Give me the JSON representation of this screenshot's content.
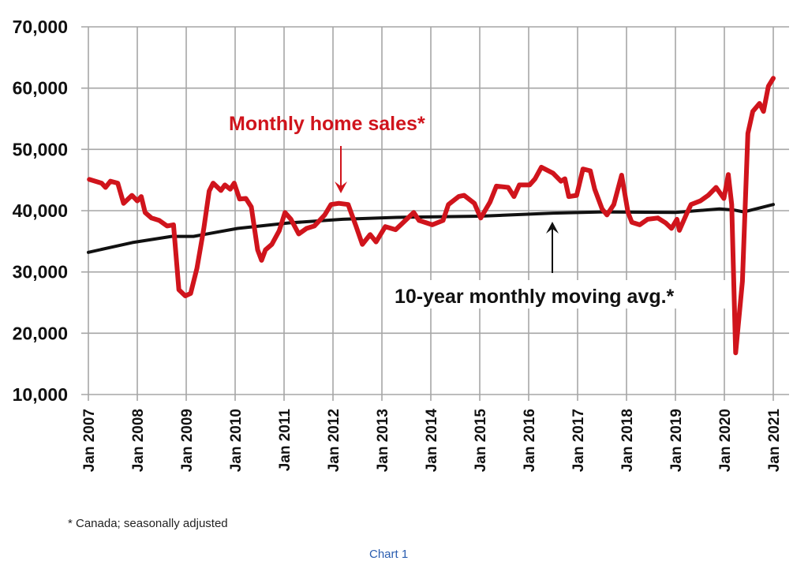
{
  "chart_data": {
    "type": "line",
    "title": "",
    "xlabel": "",
    "ylabel": "",
    "ylim": [
      10000,
      70000
    ],
    "xlim": [
      2007.0,
      2021.0
    ],
    "grid": true,
    "y_ticks": [
      "10,000",
      "20,000",
      "30,000",
      "40,000",
      "50,000",
      "60,000",
      "70,000"
    ],
    "y_tick_values": [
      10000,
      20000,
      30000,
      40000,
      50000,
      60000,
      70000
    ],
    "x_ticks": [
      "Jan 2007",
      "Jan 2008",
      "Jan 2009",
      "Jan 2010",
      "Jan 2011",
      "Jan 2012",
      "Jan 2013",
      "Jan 2014",
      "Jan 2015",
      "Jan 2016",
      "Jan 2017",
      "Jan 2018",
      "Jan 2019",
      "Jan 2020",
      "Jan 2021"
    ],
    "x_tick_values": [
      2007,
      2008,
      2009,
      2010,
      2011,
      2012,
      2013,
      2014,
      2015,
      2016,
      2017,
      2018,
      2019,
      2020,
      2021
    ],
    "series": [
      {
        "name": "Monthly home sales*",
        "color": "#d0141c",
        "points": [
          [
            2007.02,
            45100
          ],
          [
            2007.27,
            44500
          ],
          [
            2007.35,
            43800
          ],
          [
            2007.45,
            44800
          ],
          [
            2007.6,
            44500
          ],
          [
            2007.72,
            41200
          ],
          [
            2007.89,
            42500
          ],
          [
            2008.0,
            41600
          ],
          [
            2008.08,
            42300
          ],
          [
            2008.16,
            39700
          ],
          [
            2008.29,
            38800
          ],
          [
            2008.45,
            38400
          ],
          [
            2008.61,
            37500
          ],
          [
            2008.74,
            37700
          ],
          [
            2008.85,
            27100
          ],
          [
            2008.98,
            26100
          ],
          [
            2009.09,
            26500
          ],
          [
            2009.22,
            30600
          ],
          [
            2009.36,
            37100
          ],
          [
            2009.47,
            43200
          ],
          [
            2009.55,
            44500
          ],
          [
            2009.71,
            43300
          ],
          [
            2009.79,
            44200
          ],
          [
            2009.9,
            43500
          ],
          [
            2009.98,
            44500
          ],
          [
            2010.09,
            41900
          ],
          [
            2010.22,
            42000
          ],
          [
            2010.33,
            40600
          ],
          [
            2010.46,
            33600
          ],
          [
            2010.54,
            31900
          ],
          [
            2010.62,
            33600
          ],
          [
            2010.75,
            34500
          ],
          [
            2010.9,
            36700
          ],
          [
            2011.02,
            39700
          ],
          [
            2011.14,
            38600
          ],
          [
            2011.3,
            36200
          ],
          [
            2011.46,
            37100
          ],
          [
            2011.62,
            37500
          ],
          [
            2011.83,
            39300
          ],
          [
            2011.96,
            41000
          ],
          [
            2012.12,
            41200
          ],
          [
            2012.31,
            41000
          ],
          [
            2012.47,
            37500
          ],
          [
            2012.6,
            34500
          ],
          [
            2012.76,
            36100
          ],
          [
            2012.88,
            34900
          ],
          [
            2013.07,
            37400
          ],
          [
            2013.28,
            36900
          ],
          [
            2013.65,
            39700
          ],
          [
            2013.76,
            38400
          ],
          [
            2014.03,
            37700
          ],
          [
            2014.25,
            38400
          ],
          [
            2014.36,
            41000
          ],
          [
            2014.57,
            42300
          ],
          [
            2014.68,
            42500
          ],
          [
            2014.89,
            41200
          ],
          [
            2015.02,
            38800
          ],
          [
            2015.21,
            41400
          ],
          [
            2015.34,
            44000
          ],
          [
            2015.58,
            43800
          ],
          [
            2015.7,
            42300
          ],
          [
            2015.81,
            44200
          ],
          [
            2016.02,
            44200
          ],
          [
            2016.13,
            45200
          ],
          [
            2016.26,
            47100
          ],
          [
            2016.5,
            46100
          ],
          [
            2016.66,
            44800
          ],
          [
            2016.74,
            45200
          ],
          [
            2016.82,
            42300
          ],
          [
            2016.98,
            42500
          ],
          [
            2017.11,
            46800
          ],
          [
            2017.26,
            46500
          ],
          [
            2017.35,
            43500
          ],
          [
            2017.5,
            40300
          ],
          [
            2017.6,
            39300
          ],
          [
            2017.74,
            41000
          ],
          [
            2017.9,
            45800
          ],
          [
            2018.03,
            39700
          ],
          [
            2018.11,
            38100
          ],
          [
            2018.27,
            37700
          ],
          [
            2018.43,
            38600
          ],
          [
            2018.64,
            38800
          ],
          [
            2018.8,
            38000
          ],
          [
            2018.92,
            37100
          ],
          [
            2019.03,
            38600
          ],
          [
            2019.08,
            36800
          ],
          [
            2019.24,
            39700
          ],
          [
            2019.32,
            41000
          ],
          [
            2019.51,
            41600
          ],
          [
            2019.67,
            42500
          ],
          [
            2019.83,
            43800
          ],
          [
            2019.99,
            42000
          ],
          [
            2020.08,
            45900
          ],
          [
            2020.15,
            41000
          ],
          [
            2020.23,
            16800
          ],
          [
            2020.37,
            28500
          ],
          [
            2020.48,
            52600
          ],
          [
            2020.58,
            56200
          ],
          [
            2020.72,
            57500
          ],
          [
            2020.8,
            56200
          ],
          [
            2020.9,
            60300
          ],
          [
            2021.0,
            61600
          ]
        ]
      },
      {
        "name": "10-year monthly moving avg.*",
        "color": "#111111",
        "points": [
          [
            2007.0,
            33200
          ],
          [
            2007.9,
            34800
          ],
          [
            2008.7,
            35800
          ],
          [
            2009.15,
            35800
          ],
          [
            2010.05,
            37100
          ],
          [
            2011.1,
            38000
          ],
          [
            2012.2,
            38600
          ],
          [
            2013.3,
            38900
          ],
          [
            2015.0,
            39100
          ],
          [
            2016.5,
            39600
          ],
          [
            2017.5,
            39800
          ],
          [
            2019.0,
            39700
          ],
          [
            2019.9,
            40300
          ],
          [
            2020.2,
            40100
          ],
          [
            2020.4,
            39800
          ],
          [
            2021.0,
            41000
          ]
        ]
      }
    ],
    "annotations": [
      {
        "text": "Monthly home sales*",
        "color": "#d0141c",
        "arrow_to": [
          2012.3,
          41500
        ]
      },
      {
        "text": "10-year monthly moving avg.*",
        "color": "#111111",
        "arrow_to": [
          2016.5,
          39600
        ]
      }
    ]
  },
  "footnote": "* Canada; seasonally adjusted",
  "caption": "Chart 1"
}
